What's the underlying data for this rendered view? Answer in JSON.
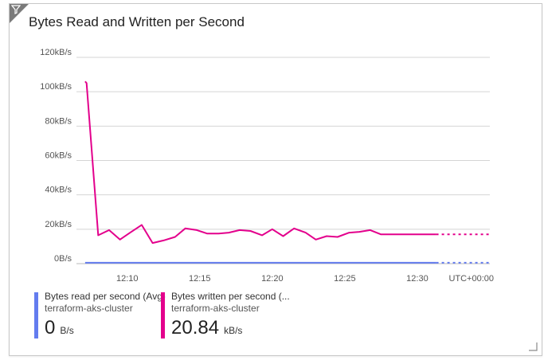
{
  "tile": {
    "title": "Bytes Read and Written per Second",
    "filter_icon": "filter-icon",
    "resize_icon": "resize-handle-icon"
  },
  "chart_data": {
    "type": "line",
    "title": "Bytes Read and Written per Second",
    "xlabel": "",
    "ylabel": "",
    "ylim": [
      0,
      120
    ],
    "y_unit": "kB/s",
    "y_ticks": [
      "0B/s",
      "20kB/s",
      "40kB/s",
      "60kB/s",
      "80kB/s",
      "100kB/s",
      "120kB/s"
    ],
    "y_tick_values": [
      0,
      20,
      40,
      60,
      80,
      100,
      120
    ],
    "x_ticks": [
      "12:10",
      "12:15",
      "12:20",
      "12:25",
      "12:30"
    ],
    "x_tick_minutes": [
      10,
      15,
      20,
      25,
      30
    ],
    "x_range_minutes": [
      6.5,
      35
    ],
    "timezone_label": "UTC+00:00",
    "grid": true,
    "series": [
      {
        "name": "Bytes written per second",
        "color": "#e3008c",
        "x": [
          7.1,
          7.2,
          8.0,
          8.75,
          9.5,
          10.2,
          11.0,
          11.75,
          12.5,
          13.3,
          14.0,
          14.8,
          15.5,
          16.3,
          17.0,
          17.75,
          18.5,
          19.3,
          20.0,
          20.75,
          21.5,
          22.3,
          23.0,
          23.75,
          24.5,
          25.3,
          26.0,
          26.75,
          27.5,
          28.3,
          29.0,
          29.75,
          30.5,
          31.3,
          32.0,
          32.75,
          33.5,
          34.3,
          35.0
        ],
        "y": [
          106,
          105,
          16.5,
          19.5,
          14,
          18,
          22.5,
          12,
          13.5,
          15.5,
          20.5,
          19.5,
          17.5,
          17.5,
          18,
          19.5,
          19,
          16.5,
          20,
          16,
          20.5,
          18,
          14,
          16,
          15.5,
          18,
          18.5,
          19.5,
          17,
          17,
          17,
          17,
          17,
          17,
          17,
          17,
          17,
          17,
          17
        ],
        "dashed_from_minute": 31.3
      },
      {
        "name": "Bytes read per second",
        "color": "#637cef",
        "x": [
          7.1,
          31.3,
          35.0
        ],
        "y": [
          0.5,
          0.5,
          0.5
        ],
        "dashed_from_minute": 31.3
      }
    ]
  },
  "legend": [
    {
      "series": "Bytes read per second (Avg)",
      "resource": "terraform-aks-cluster",
      "value": "0",
      "unit": "B/s",
      "color": "#637cef"
    },
    {
      "series": "Bytes written per second (...",
      "resource": "terraform-aks-cluster",
      "value": "20.84",
      "unit": "kB/s",
      "color": "#e3008c"
    }
  ]
}
